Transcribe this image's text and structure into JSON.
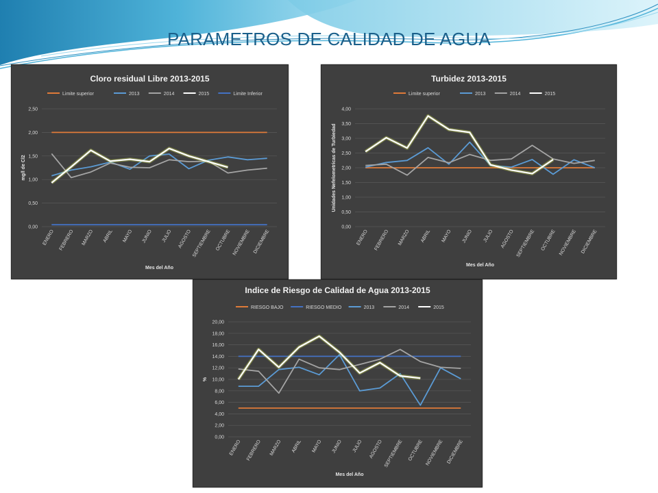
{
  "slide": {
    "title": "PARAMETROS DE CALIDAD DE AGUA"
  },
  "chart_data": [
    {
      "id": "cloro",
      "type": "line",
      "title": "Cloro residual Libre 2013-2015",
      "xlabel": "Mes del Año",
      "ylabel": "mg/l de Cl2",
      "ylim": [
        0,
        2.5
      ],
      "ystep": 0.5,
      "ydec": 2,
      "grid": true,
      "legend_position": "top",
      "categories": [
        "ENERO",
        "FEBRERO",
        "MARZO",
        "ABRIL",
        "MAYO",
        "JUNIO",
        "JULIO",
        "AGOSTO",
        "SEPTIEMBRE",
        "OCTUBRE",
        "NOVIEMBRE",
        "DICIEMBRE"
      ],
      "series": [
        {
          "name": "Limite superior",
          "color": "#e07b39",
          "glow": false,
          "values": [
            2,
            2,
            2,
            2,
            2,
            2,
            2,
            2,
            2,
            2,
            2,
            2
          ]
        },
        {
          "name": "2013",
          "color": "#5b9bd5",
          "glow": false,
          "values": [
            1.08,
            1.2,
            1.27,
            1.37,
            1.22,
            1.5,
            1.54,
            1.23,
            1.41,
            1.48,
            1.42,
            1.45
          ]
        },
        {
          "name": "2014",
          "color": "#a5a5a5",
          "glow": false,
          "values": [
            1.55,
            1.04,
            1.16,
            1.35,
            1.26,
            1.25,
            1.42,
            1.38,
            1.39,
            1.14,
            1.2,
            1.24
          ]
        },
        {
          "name": "2015",
          "color": "#ffffff",
          "glow": true,
          "values": [
            0.93,
            1.27,
            1.62,
            1.39,
            1.43,
            1.38,
            1.66,
            1.5,
            1.38,
            1.26,
            null,
            null
          ]
        },
        {
          "name": "Limite Inferior",
          "color": "#4472c4",
          "glow": false,
          "values": [
            0.04,
            0.04,
            0.04,
            0.04,
            0.04,
            0.04,
            0.04,
            0.04,
            0.04,
            0.04,
            0.04,
            0.04
          ]
        }
      ]
    },
    {
      "id": "turbidez",
      "type": "line",
      "title": "Turbidez 2013-2015",
      "xlabel": "Mes del Año",
      "ylabel": "Unidades Nefelometricas de Turbiedad",
      "ylim": [
        0,
        4
      ],
      "ystep": 0.5,
      "ydec": 2,
      "grid": true,
      "legend_position": "top",
      "categories": [
        "ENERO",
        "FEBRERO",
        "MARZO",
        "ABRIL",
        "MAYO",
        "JUNIO",
        "JULIO",
        "AGOSTO",
        "SEPTIEMBRE",
        "OCTUBRE",
        "NOVIEMBRE",
        "DICIEMBRE"
      ],
      "series": [
        {
          "name": "Limite superior",
          "color": "#e07b39",
          "glow": false,
          "values": [
            2,
            2,
            2,
            2,
            2,
            2,
            2,
            2,
            2,
            2,
            2,
            2
          ]
        },
        {
          "name": "2013",
          "color": "#5b9bd5",
          "glow": false,
          "values": [
            2.02,
            2.18,
            2.25,
            2.68,
            2.12,
            2.87,
            2.08,
            2.02,
            2.28,
            1.78,
            2.27,
            2.0
          ]
        },
        {
          "name": "2014",
          "color": "#a5a5a5",
          "glow": false,
          "values": [
            2.08,
            2.12,
            1.75,
            2.35,
            2.17,
            2.45,
            2.25,
            2.3,
            2.76,
            2.3,
            2.15,
            2.25
          ]
        },
        {
          "name": "2015",
          "color": "#ffffff",
          "glow": true,
          "values": [
            2.55,
            3.02,
            2.67,
            3.76,
            3.3,
            3.2,
            2.1,
            1.92,
            1.8,
            2.28,
            null,
            null
          ]
        }
      ]
    },
    {
      "id": "irca",
      "type": "line",
      "title": "Indice de Riesgo de Calidad de Agua 2013-2015",
      "xlabel": "Mes del Año",
      "ylabel": "%",
      "ylim": [
        0,
        20
      ],
      "ystep": 2,
      "ydec": 2,
      "grid": true,
      "legend_position": "top",
      "categories": [
        "ENERO",
        "FEBRERO",
        "MARZO",
        "ABRIL",
        "MAYO",
        "JUNIO",
        "JULIO",
        "AGOSTO",
        "SEPTIEMBRE",
        "OCTUBRE",
        "NOVIEMBRE",
        "DICIEMBRE"
      ],
      "series": [
        {
          "name": "RIESGO BAJO",
          "color": "#e07b39",
          "glow": false,
          "values": [
            5,
            5,
            5,
            5,
            5,
            5,
            5,
            5,
            5,
            5,
            5,
            5
          ]
        },
        {
          "name": "RIESGO MEDIO",
          "color": "#4472c4",
          "glow": false,
          "values": [
            14,
            14,
            14,
            14,
            14,
            14,
            14,
            14,
            14,
            14,
            14,
            14
          ]
        },
        {
          "name": "2013",
          "color": "#5b9bd5",
          "glow": false,
          "values": [
            8.8,
            8.8,
            11.7,
            12.1,
            10.8,
            14.3,
            8,
            8.5,
            11,
            5.5,
            12,
            10.1
          ]
        },
        {
          "name": "2014",
          "color": "#a5a5a5",
          "glow": false,
          "values": [
            11.8,
            11.4,
            7.6,
            13.5,
            12,
            11.7,
            12.6,
            13.5,
            15.2,
            13.1,
            12.1,
            11.9
          ]
        },
        {
          "name": "2015",
          "color": "#ffffff",
          "glow": true,
          "values": [
            10,
            15.2,
            12.1,
            15.6,
            17.5,
            14.7,
            11.1,
            12.9,
            10.6,
            10.2,
            null,
            null
          ]
        }
      ]
    }
  ]
}
